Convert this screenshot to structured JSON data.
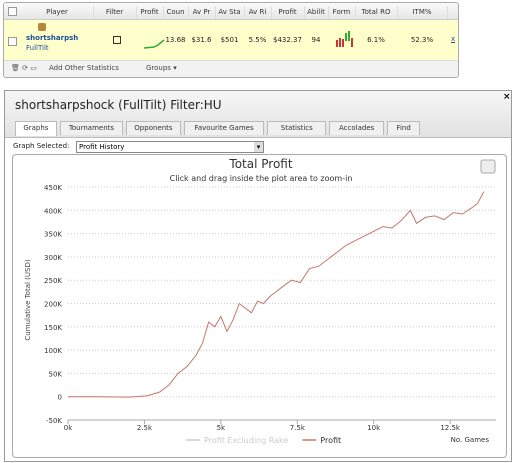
{
  "table": {
    "headers": [
      "Player",
      "Filter",
      "Profit",
      "Coun",
      "Av Pr",
      "Av Sta",
      "Av Ri",
      "Profit",
      "Abilit",
      "Form",
      "Total RO",
      "ITM%"
    ],
    "rows": [
      {
        "player": "shortsharpsh",
        "site": "FullTilt",
        "cells": [
          "13.68",
          "$31.6",
          "$501",
          "5.5%",
          "$432.37",
          "94"
        ],
        "returns": [
          "6.1%",
          "52.3%"
        ]
      }
    ]
  },
  "toolbar": {
    "add": "Add Other Statistics",
    "groups": "Groups"
  },
  "panel": {
    "title": "shortsharpshock (FullTilt) Filter:HU",
    "tabs": [
      "Graphs",
      "Tournaments",
      "Opponents",
      "Favourite Games",
      "Statistics",
      "Accolades",
      "Find"
    ],
    "graph_label": "Graph Selected:",
    "graph_selected": "Profit History"
  },
  "chart_data": {
    "type": "line",
    "title": "Total Profit",
    "subtitle": "Click and drag inside the plot area to zoom-in",
    "y_label": "Cumulative Total (USD)",
    "x_label": "No. Games",
    "x": [
      0,
      1000,
      2000,
      2600,
      3000,
      3300,
      3600,
      3900,
      4200,
      4400,
      4600,
      4800,
      5000,
      5200,
      5400,
      5600,
      5800,
      6000,
      6200,
      6400,
      6600,
      6800,
      7000,
      7300,
      7600,
      7900,
      8200,
      8500,
      8800,
      9100,
      9400,
      9700,
      10000,
      10300,
      10600,
      10900,
      11200,
      11400,
      11700,
      12000,
      12300,
      12600,
      12900,
      13200,
      13400,
      13600
    ],
    "series": [
      {
        "name": "Profit Excluding Rake",
        "color": "#cccccc",
        "visible": false
      },
      {
        "name": "Profit",
        "color": "#c4776b",
        "visible": true,
        "values": [
          0,
          0,
          -1000,
          2000,
          10000,
          25000,
          50000,
          65000,
          90000,
          115000,
          160000,
          150000,
          172000,
          140000,
          165000,
          200000,
          190000,
          180000,
          205000,
          200000,
          215000,
          225000,
          235000,
          250000,
          245000,
          275000,
          280000,
          295000,
          310000,
          325000,
          335000,
          345000,
          355000,
          365000,
          362000,
          378000,
          400000,
          372000,
          385000,
          388000,
          380000,
          395000,
          392000,
          405000,
          415000,
          440000
        ]
      }
    ],
    "xlim": [
      0,
      14000
    ],
    "ylim": [
      -50000,
      450000
    ],
    "xticks": [
      {
        "value": 0,
        "label": "0k"
      },
      {
        "value": 2500,
        "label": "2.5k"
      },
      {
        "value": 5000,
        "label": "5k"
      },
      {
        "value": 7500,
        "label": "7.5k"
      },
      {
        "value": 10000,
        "label": "10k"
      },
      {
        "value": 12500,
        "label": "12.5k"
      }
    ],
    "yticks": [
      {
        "value": -50000,
        "label": "-50K"
      },
      0,
      {
        "value": 50000,
        "label": "50K"
      },
      {
        "value": 100000,
        "label": "100K"
      },
      {
        "value": 150000,
        "label": "150K"
      },
      {
        "value": 200000,
        "label": "200K"
      },
      {
        "value": 250000,
        "label": "250K"
      },
      {
        "value": 300000,
        "label": "300K"
      },
      {
        "value": 350000,
        "label": "350K"
      },
      {
        "value": 400000,
        "label": "400K"
      },
      {
        "value": 450000,
        "label": "450K"
      }
    ],
    "grid": true
  }
}
